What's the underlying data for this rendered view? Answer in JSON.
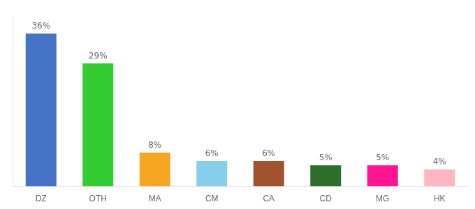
{
  "chart_data": {
    "type": "bar",
    "categories": [
      "DZ",
      "OTH",
      "MA",
      "CM",
      "CA",
      "CD",
      "MG",
      "HK"
    ],
    "values": [
      36,
      29,
      8,
      6,
      6,
      5,
      5,
      4
    ],
    "value_labels": [
      "36%",
      "29%",
      "8%",
      "6%",
      "6%",
      "5%",
      "5%",
      "4%"
    ],
    "colors": [
      "#4472c4",
      "#33cc33",
      "#f5a623",
      "#87ceeb",
      "#a0522d",
      "#2d6e2d",
      "#ff1493",
      "#ffb6c1"
    ],
    "ylim": [
      0,
      40
    ],
    "grid": false,
    "data_labels": true,
    "tick_labels": "x"
  }
}
